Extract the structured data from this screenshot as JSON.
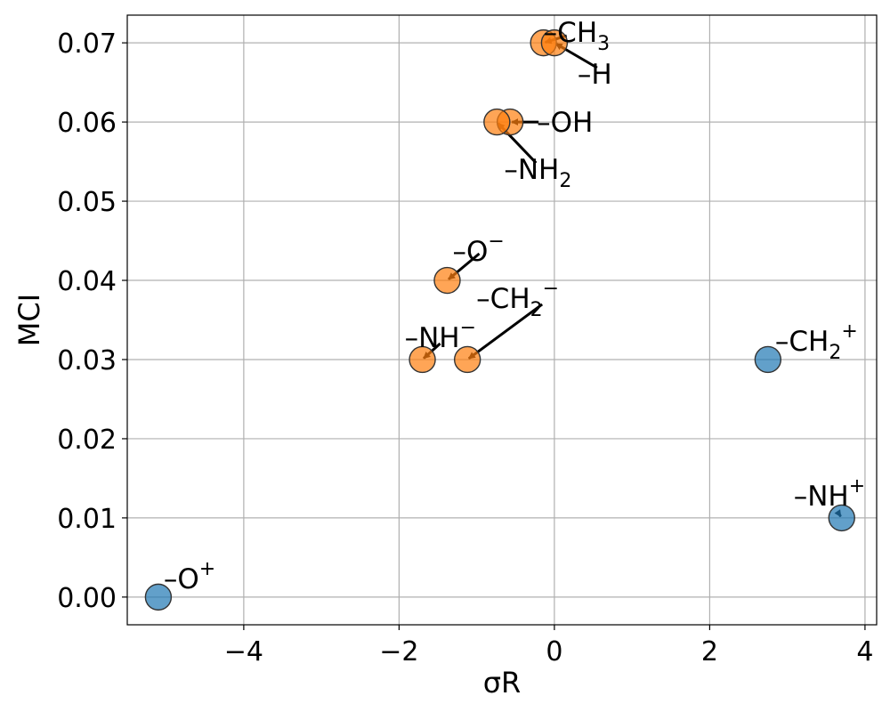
{
  "chart_data": {
    "type": "scatter",
    "title": "",
    "xlabel": "σR",
    "ylabel": "MCI",
    "xlim": [
      -5.5,
      4.15
    ],
    "ylim": [
      -0.0035,
      0.0735
    ],
    "xticks": [
      -4,
      -2,
      0,
      2,
      4
    ],
    "yticks": [
      0.0,
      0.01,
      0.02,
      0.03,
      0.04,
      0.05,
      0.06,
      0.07
    ],
    "grid": true,
    "colors": {
      "neutral": "#ff7f0e",
      "cation": "#1f77b4"
    },
    "points": [
      {
        "x": -0.14,
        "y": 0.07,
        "group": "neutral",
        "label": {
          "text": "–CH",
          "sub": "3",
          "sup": ""
        }
      },
      {
        "x": 0.0,
        "y": 0.07,
        "group": "neutral",
        "label": {
          "text": "–H",
          "sub": "",
          "sup": ""
        }
      },
      {
        "x": -0.57,
        "y": 0.06,
        "group": "neutral",
        "label": {
          "text": "–OH",
          "sub": "",
          "sup": ""
        }
      },
      {
        "x": -0.74,
        "y": 0.06,
        "group": "neutral",
        "label": {
          "text": "–NH",
          "sub": "2",
          "sup": ""
        }
      },
      {
        "x": -1.38,
        "y": 0.04,
        "group": "neutral",
        "label": {
          "text": "–O",
          "sub": "",
          "sup": "−"
        }
      },
      {
        "x": -1.12,
        "y": 0.03,
        "group": "neutral",
        "label": {
          "text": "–CH",
          "sub": "2",
          "sup": "−"
        }
      },
      {
        "x": -1.7,
        "y": 0.03,
        "group": "neutral",
        "label": {
          "text": "–NH",
          "sub": "",
          "sup": "−"
        }
      },
      {
        "x": 2.75,
        "y": 0.03,
        "group": "cation",
        "label": {
          "text": "–CH",
          "sub": "2",
          "sup": "+"
        }
      },
      {
        "x": 3.7,
        "y": 0.01,
        "group": "cation",
        "label": {
          "text": "–NH",
          "sub": "",
          "sup": "+"
        }
      },
      {
        "x": -5.1,
        "y": 0.0,
        "group": "cation",
        "label": {
          "text": "–O",
          "sub": "",
          "sup": "+"
        }
      }
    ]
  }
}
